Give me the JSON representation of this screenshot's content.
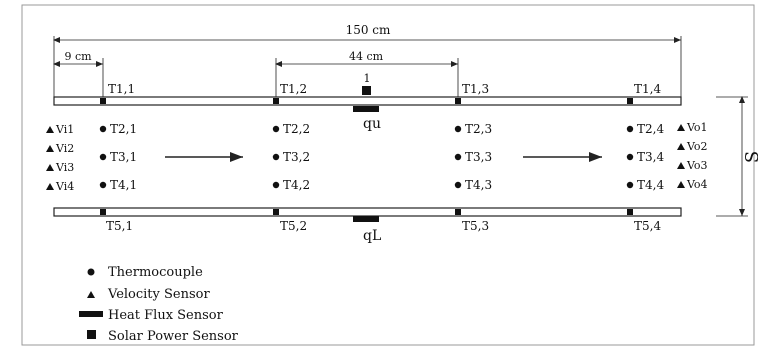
{
  "dimensions": {
    "total_length": "150 cm",
    "inlet_offset": "9 cm",
    "middle_span": "44 cm",
    "gap_label": "S"
  },
  "top_sensors": [
    "T1,1",
    "T1,2",
    "T1,3",
    "T1,4"
  ],
  "bottom_sensors": [
    "T5,1",
    "T5,2",
    "T5,3",
    "T5,4"
  ],
  "interior_columns": [
    [
      "T2,1",
      "T3,1",
      "T4,1"
    ],
    [
      "T2,2",
      "T3,2",
      "T4,2"
    ],
    [
      "T2,3",
      "T3,3",
      "T4,3"
    ],
    [
      "T2,4",
      "T3,4",
      "T4,4"
    ]
  ],
  "inlet_velocity": [
    "Vi1",
    "Vi2",
    "Vi3",
    "Vi4"
  ],
  "outlet_velocity": [
    "Vo1",
    "Vo2",
    "Vo3",
    "Vo4"
  ],
  "solar_sensor_label": "1",
  "heat_flux_labels": {
    "upper": "qu",
    "lower": "qL"
  },
  "legend": [
    {
      "symbol": "circle",
      "label": "Thermocouple"
    },
    {
      "symbol": "triangle",
      "label": "Velocity Sensor"
    },
    {
      "symbol": "bar",
      "label": "Heat Flux Sensor"
    },
    {
      "symbol": "square",
      "label": "Solar Power Sensor"
    }
  ]
}
